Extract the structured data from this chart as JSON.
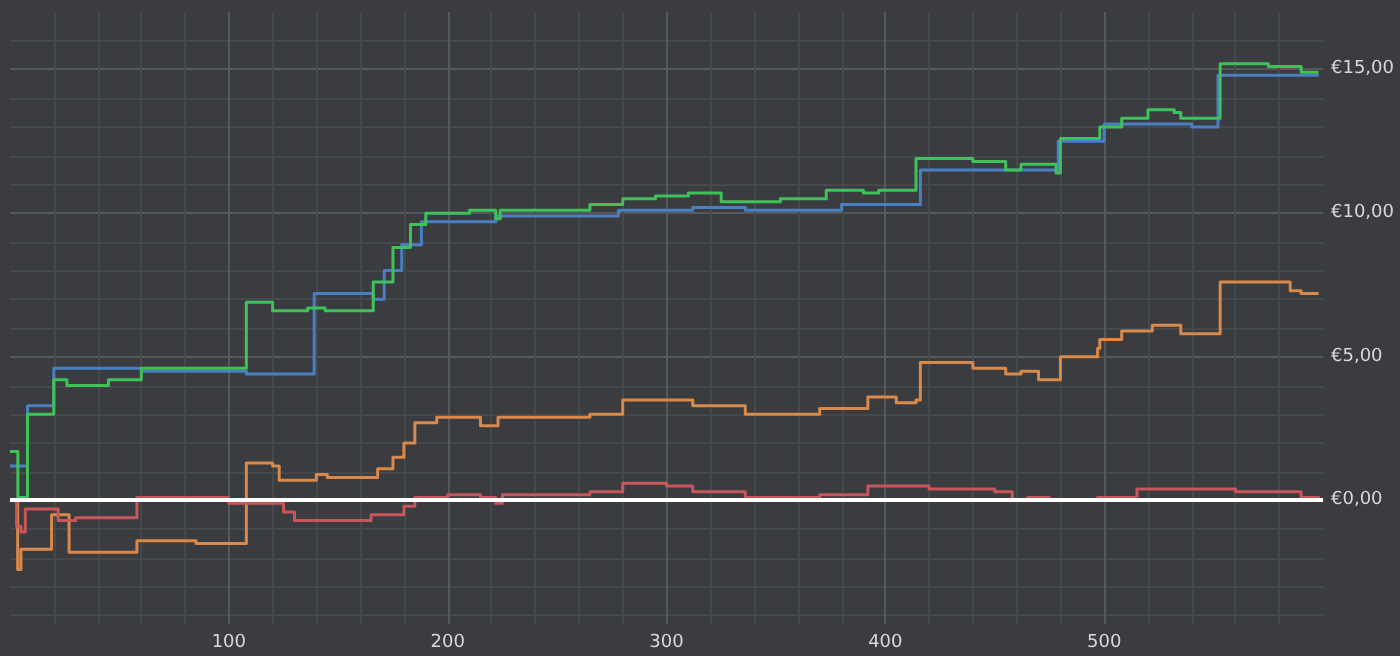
{
  "chart_data": {
    "type": "step",
    "xlim": [
      0,
      600
    ],
    "xticks": [
      100,
      200,
      300,
      400,
      500
    ],
    "ylim": [
      -4.3,
      17
    ],
    "yticks": [
      {
        "value": 0,
        "label": "€0,00"
      },
      {
        "value": 5,
        "label": "€5,00"
      },
      {
        "value": 10,
        "label": "€10,00"
      },
      {
        "value": 15,
        "label": "€15,00"
      }
    ],
    "grid": true,
    "ref_lines": [
      {
        "axis": "y",
        "value": 0,
        "color": "#ffffff"
      }
    ],
    "series": [
      {
        "color": "#4a7fc1",
        "x": [
          0,
          8,
          20,
          60,
          108,
          139,
          166,
          171,
          179,
          188,
          222,
          278,
          312,
          336,
          380,
          416,
          479,
          500,
          532,
          540,
          552,
          598
        ],
        "values": [
          1.2,
          3.3,
          4.6,
          4.5,
          4.4,
          7.2,
          7.0,
          8.0,
          8.9,
          9.7,
          9.9,
          10.1,
          10.2,
          10.1,
          10.3,
          11.5,
          12.5,
          13.1,
          13.1,
          13.0,
          14.8,
          14.8
        ]
      },
      {
        "color": "#3fc25a",
        "x": [
          0,
          3.6,
          8,
          20,
          26,
          45,
          60,
          108,
          120,
          136,
          144,
          166,
          175,
          183,
          190,
          210,
          222,
          224,
          265,
          280,
          295,
          310,
          325,
          352,
          373,
          390,
          397,
          414,
          440,
          455,
          462,
          478,
          480,
          496,
          498,
          508,
          520,
          532,
          535,
          553,
          575,
          590,
          598
        ],
        "values": [
          1.7,
          0.1,
          3.0,
          4.2,
          4.0,
          4.2,
          4.6,
          6.9,
          6.6,
          6.7,
          6.6,
          7.6,
          8.8,
          9.6,
          10.0,
          10.1,
          9.8,
          10.1,
          10.3,
          10.5,
          10.6,
          10.7,
          10.4,
          10.5,
          10.8,
          10.7,
          10.8,
          11.9,
          11.8,
          11.5,
          11.7,
          11.4,
          12.6,
          12.6,
          13.0,
          13.3,
          13.6,
          13.5,
          13.3,
          15.2,
          15.1,
          14.9,
          14.9
        ]
      },
      {
        "color": "#d9894a",
        "x": [
          0,
          3.5,
          5,
          19,
          26,
          27,
          58,
          85,
          108,
          120,
          123,
          140,
          145,
          168,
          175,
          180,
          185,
          195,
          215,
          223,
          265,
          280,
          300,
          312,
          336,
          360,
          370,
          392,
          405,
          414,
          416,
          440,
          455,
          462,
          470,
          480,
          497,
          498,
          508,
          522,
          535,
          553,
          585,
          590,
          598
        ],
        "values": [
          0.0,
          -2.4,
          -1.7,
          -0.5,
          -0.5,
          -1.8,
          -1.4,
          -1.5,
          1.3,
          1.2,
          0.7,
          0.9,
          0.8,
          1.1,
          1.5,
          2.0,
          2.7,
          2.9,
          2.6,
          2.9,
          3.0,
          3.5,
          3.5,
          3.3,
          3.0,
          3.0,
          3.2,
          3.6,
          3.4,
          3.5,
          4.8,
          4.6,
          4.4,
          4.5,
          4.2,
          5.0,
          5.3,
          5.6,
          5.9,
          6.1,
          5.8,
          7.6,
          7.3,
          7.2,
          7.2
        ]
      },
      {
        "color": "#c8565a",
        "x": [
          0,
          3,
          5,
          7,
          22,
          30,
          58,
          100,
          125,
          130,
          165,
          180,
          185,
          200,
          215,
          222,
          225,
          265,
          280,
          300,
          312,
          336,
          370,
          392,
          420,
          450,
          458,
          465,
          475,
          497,
          515,
          530,
          560,
          590,
          598
        ],
        "values": [
          0.0,
          -0.9,
          -1.1,
          -0.3,
          -0.7,
          -0.6,
          0.1,
          -0.1,
          -0.4,
          -0.7,
          -0.5,
          -0.2,
          0.1,
          0.2,
          0.1,
          -0.1,
          0.2,
          0.3,
          0.6,
          0.5,
          0.3,
          0.1,
          0.2,
          0.5,
          0.4,
          0.3,
          0.0,
          0.1,
          0.0,
          0.1,
          0.4,
          0.4,
          0.3,
          0.1,
          0.0
        ]
      }
    ]
  }
}
